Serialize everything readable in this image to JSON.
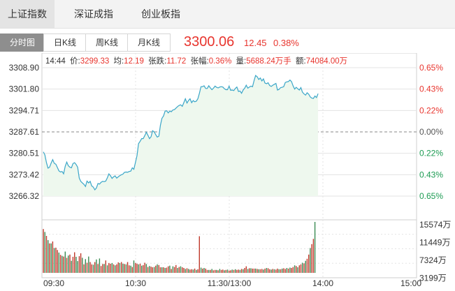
{
  "tabs": [
    {
      "label": "上证指数",
      "active": true
    },
    {
      "label": "深证成指",
      "active": false
    },
    {
      "label": "创业板指",
      "active": false
    }
  ],
  "subtabs": [
    {
      "label": "分时图",
      "active": true
    },
    {
      "label": "日K线",
      "active": false
    },
    {
      "label": "周K线",
      "active": false
    },
    {
      "label": "月K线",
      "active": false
    }
  ],
  "index": {
    "price": "3300.06",
    "change": "12.45",
    "change_pct": "0.38%"
  },
  "info": {
    "time": "14:44",
    "price_label": "价:",
    "price": "3299.33",
    "avg_label": "均:",
    "avg": "12.19",
    "change_label": "张跌:",
    "change": "11.72",
    "pct_label": "张幅:",
    "pct": "0.36%",
    "vol_label": "量:",
    "vol": "5688.24万手",
    "amount_label": "额:",
    "amount": "74084.00万"
  },
  "colors": {
    "up": "#e8352e",
    "down": "#1c9b52",
    "line": "#3aa6c8",
    "fill": "#eef8ee",
    "volume_up": "#c0392b",
    "volume_down": "#3a8a52",
    "grid": "#e3e3e3"
  },
  "chart_data": {
    "type": "line",
    "prev_close": 3287.61,
    "y_ticks": [
      "3308.90",
      "3301.80",
      "3294.71",
      "3287.61",
      "3280.51",
      "3273.42",
      "3266.32"
    ],
    "y_ticks_right": [
      "0.65%",
      "0.43%",
      "0.22%",
      "0.00%",
      "0.22%",
      "0.43%",
      "0.65%"
    ],
    "ylim": [
      3266.32,
      3308.9
    ],
    "x_ticks": [
      "09:30",
      "10:30",
      "11:30/13:00",
      "14:00",
      "15:00"
    ],
    "series": [
      {
        "values": [
          3281.0,
          3280.0,
          3277.4,
          3275.6,
          3275.9,
          3277.3,
          3278.4,
          3277.2,
          3276.9,
          3275.8,
          3274.7,
          3274.3,
          3274.5,
          3273.7,
          3276.2,
          3277.6,
          3276.4,
          3275.9,
          3275.7,
          3277.1,
          3277.4,
          3276.8,
          3275.9,
          3272.3,
          3271.2,
          3270.7,
          3270.2,
          3269.5,
          3271.3,
          3270.7,
          3271.2,
          3269.7,
          3269.3,
          3268.4,
          3269.0,
          3270.5,
          3270.3,
          3270.9,
          3271.2,
          3271.1,
          3271.3,
          3272.4,
          3273.7,
          3273.1,
          3272.2,
          3272.7,
          3273.0,
          3272.3,
          3272.7,
          3273.1,
          3273.4,
          3273.6,
          3274.2,
          3274.3,
          3274.2,
          3274.5,
          3274.6,
          3275.7,
          3275.2,
          3277.5,
          3279.7,
          3283.7,
          3284.5,
          3285.4,
          3285.4,
          3286.4,
          3287.5,
          3286.5,
          3285.4,
          3286.0,
          3288.0,
          3287.6,
          3286.7,
          3285.9,
          3286.2,
          3289.8,
          3292.1,
          3292.9,
          3294.5,
          3294.6,
          3293.9,
          3294.5,
          3294.3,
          3294.9,
          3295.0,
          3295.5,
          3296.0,
          3296.4,
          3296.6,
          3296.1,
          3297.3,
          3298.6,
          3297.2,
          3298.0,
          3298.6,
          3297.3,
          3298.0,
          3297.6,
          3297.8,
          3298.6,
          3300.4,
          3302.6,
          3302.6,
          3302.9,
          3302.0,
          3302.0,
          3302.9,
          3302.2,
          3301.6,
          3302.1,
          3302.8,
          3302.4,
          3302.2,
          3302.5,
          3302.6,
          3302.5,
          3301.9,
          3301.6,
          3301.6,
          3302.8,
          3301.4,
          3301.5,
          3301.3,
          3302.0,
          3302.5,
          3301.0,
          3301.2,
          3300.4,
          3301.5,
          3302.1,
          3303.1,
          3302.1,
          3302.5,
          3302.8,
          3302.6,
          3304.6,
          3306.3,
          3305.9,
          3305.0,
          3305.5,
          3304.5,
          3305.2,
          3303.8,
          3303.6,
          3303.9,
          3303.0,
          3302.7,
          3303.1,
          3303.4,
          3303.7,
          3301.5,
          3301.7,
          3302.3,
          3302.4,
          3302.6,
          3304.0,
          3304.2,
          3304.3,
          3304.8,
          3304.3,
          3302.9,
          3301.8,
          3302.4,
          3301.9,
          3301.5,
          3302.3,
          3300.8,
          3300.2,
          3299.8,
          3300.6,
          3300.1,
          3299.2,
          3298.8,
          3298.7,
          3299.5,
          3299.0,
          3300.3
        ]
      },
      {
        "name": "",
        "values": []
      }
    ],
    "volume": {
      "y_ticks": [
        "15574万",
        "11449万",
        "7324万",
        "3199万"
      ],
      "ylim": [
        0,
        15574
      ],
      "values": [
        13400,
        12500,
        11300,
        10000,
        9000,
        9000,
        9600,
        7600,
        7700,
        7000,
        6200,
        5500,
        5200,
        5000,
        6500,
        4600,
        5300,
        5600,
        3700,
        4900,
        6300,
        4900,
        3600,
        5100,
        6000,
        4600,
        2600,
        4200,
        3100,
        5000,
        3300,
        2600,
        2500,
        3300,
        4100,
        2700,
        4400,
        2100,
        2700,
        2700,
        3800,
        2300,
        3000,
        2800,
        3000,
        2600,
        2300,
        2600,
        3200,
        3000,
        3300,
        2800,
        2700,
        2600,
        3300,
        2300,
        2200,
        1800,
        3800,
        3000,
        2800,
        2600,
        2800,
        2200,
        2400,
        3100,
        2700,
        1800,
        2100,
        1900,
        1700,
        1800,
        2200,
        2600,
        2400,
        1700,
        1700,
        1700,
        1500,
        1600,
        2000,
        2200,
        1200,
        2000,
        1800,
        2400,
        1500,
        1800,
        2000,
        1700,
        1500,
        1200,
        1400,
        1200,
        1000,
        1100,
        1000,
        1300,
        900,
        1100,
        11200,
        1600,
        1300,
        1500,
        1300,
        900,
        900,
        900,
        1200,
        800,
        900,
        900,
        800,
        1200,
        900,
        1000,
        800,
        900,
        1000,
        700,
        800,
        1000,
        900,
        1100,
        900,
        1000,
        900,
        1200,
        1100,
        1500,
        2000,
        1200,
        1400,
        1400,
        1300,
        1300,
        1300,
        1200,
        1100,
        1100,
        1200,
        1000,
        1300,
        1500,
        1400,
        1100,
        1000,
        1200,
        1100,
        1000,
        1300,
        1100,
        1100,
        1300,
        1400,
        1200,
        1500,
        1300,
        1600,
        1500,
        1800,
        2300,
        2100,
        1700,
        2300,
        2600,
        3100,
        2900,
        3700,
        4300,
        5600,
        7600,
        8800,
        10400,
        15574
      ],
      "colors": [
        1,
        0,
        1,
        0,
        1,
        0,
        1,
        0,
        1,
        1,
        0,
        1,
        0,
        1,
        0,
        1,
        0,
        1,
        0,
        1,
        1,
        0,
        0,
        1,
        1,
        0,
        1,
        0,
        1,
        0,
        1,
        1,
        0,
        1,
        0,
        1,
        0,
        1,
        1,
        0,
        1,
        0,
        1,
        1,
        0,
        1,
        0,
        1,
        1,
        0,
        1,
        0,
        1,
        0,
        1,
        1,
        0,
        1,
        0,
        1,
        1,
        0,
        1,
        0,
        1,
        1,
        0,
        1,
        0,
        1,
        1,
        0,
        1,
        0,
        1,
        1,
        0,
        1,
        0,
        1,
        1,
        0,
        1,
        0,
        1,
        1,
        0,
        1,
        0,
        1,
        1,
        0,
        1,
        0,
        1,
        1,
        0,
        1,
        0,
        1,
        1,
        0,
        1,
        0,
        1,
        1,
        0,
        1,
        0,
        1,
        1,
        0,
        1,
        0,
        1,
        1,
        0,
        1,
        0,
        1,
        1,
        0,
        1,
        0,
        1,
        1,
        0,
        1,
        0,
        1,
        1,
        0,
        1,
        0,
        1,
        1,
        0,
        1,
        0,
        1,
        1,
        0,
        1,
        0,
        1,
        1,
        0,
        1,
        0,
        1,
        1,
        0,
        1,
        0,
        1,
        1,
        0,
        1,
        0,
        1,
        1,
        0,
        1,
        0,
        1,
        1,
        0,
        1,
        0,
        1,
        1,
        0,
        1,
        1,
        0,
        1,
        0,
        1
      ]
    }
  }
}
